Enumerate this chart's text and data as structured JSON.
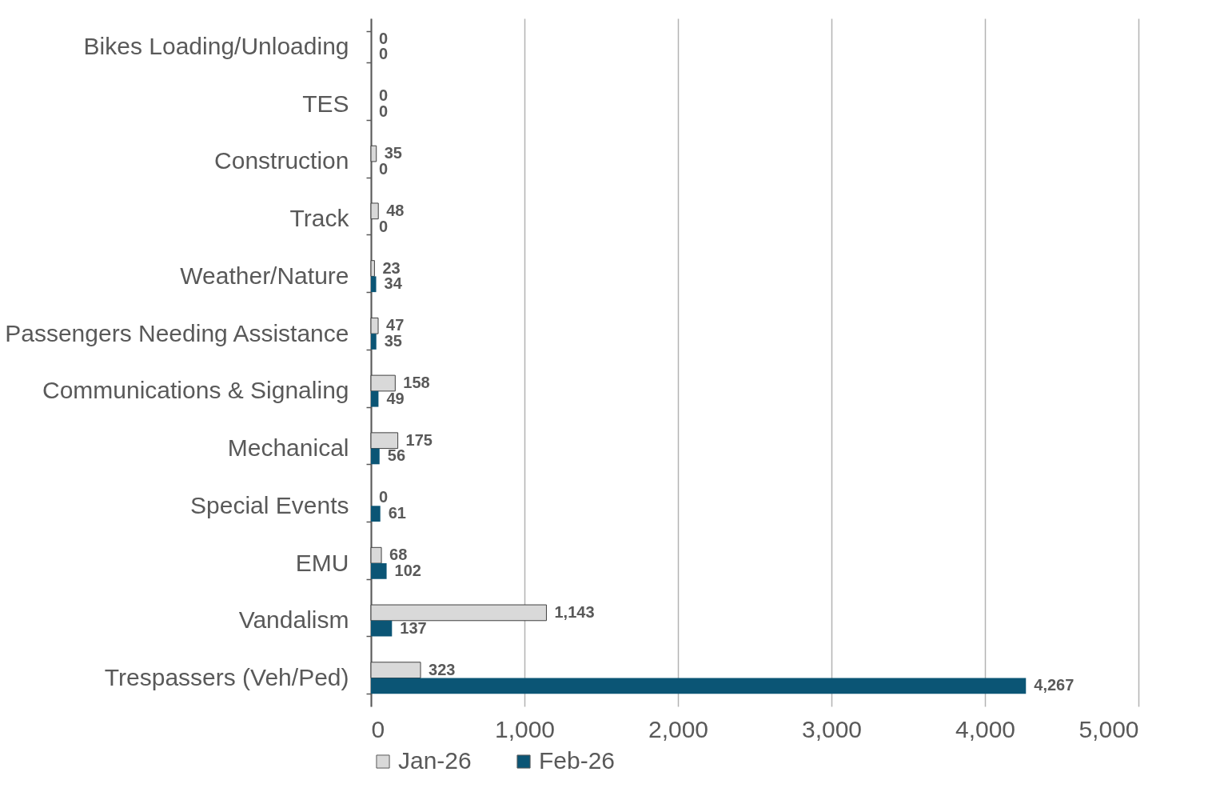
{
  "chart_data": {
    "type": "bar",
    "orientation": "horizontal",
    "categories": [
      "Bikes Loading/Unloading",
      "TES",
      "Construction",
      "Track",
      "Weather/Nature",
      "Passengers Needing Assistance",
      "Communications & Signaling",
      "Mechanical",
      "Special Events",
      "EMU",
      "Vandalism",
      "Trespassers (Veh/Ped)"
    ],
    "series": [
      {
        "name": "Jan-26",
        "color": "#d9d9d9",
        "values": [
          0,
          0,
          35,
          48,
          23,
          47,
          158,
          175,
          0,
          68,
          1143,
          323
        ],
        "value_labels": [
          "0",
          "0",
          "35",
          "48",
          "23",
          "47",
          "158",
          "175",
          "0",
          "68",
          "1,143",
          "323"
        ]
      },
      {
        "name": "Feb-26",
        "color": "#0b5575",
        "values": [
          0,
          0,
          0,
          0,
          34,
          35,
          49,
          56,
          61,
          102,
          137,
          4267
        ],
        "value_labels": [
          "0",
          "0",
          "0",
          "0",
          "34",
          "35",
          "49",
          "56",
          "61",
          "102",
          "137",
          "4,267"
        ]
      }
    ],
    "xlim": [
      0,
      5000
    ],
    "xticks": [
      {
        "value": 0,
        "label": "0"
      },
      {
        "value": 1000,
        "label": "1,000"
      },
      {
        "value": 2000,
        "label": "2,000"
      },
      {
        "value": 3000,
        "label": "3,000"
      },
      {
        "value": 4000,
        "label": "4,000"
      },
      {
        "value": 5000,
        "label": "5,000"
      }
    ],
    "grid": "x",
    "legend": "bottom"
  }
}
